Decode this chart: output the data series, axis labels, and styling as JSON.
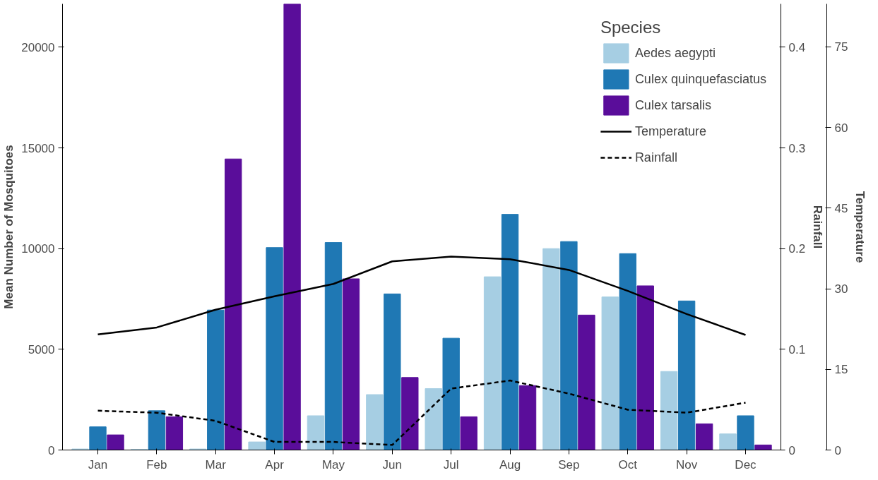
{
  "chart_data": {
    "type": "bar",
    "categories": [
      "Jan",
      "Feb",
      "Mar",
      "Apr",
      "May",
      "Jun",
      "Jul",
      "Aug",
      "Sep",
      "Oct",
      "Nov",
      "Dec"
    ],
    "ylabel": "Mean Number of Mosquitoes",
    "y2label": "Rainfall",
    "y3label": "Temperature",
    "legend_title": "Species",
    "legend": "top right",
    "ylim": [
      0,
      22150
    ],
    "yticks": [
      0,
      5000,
      10000,
      15000,
      20000
    ],
    "y2lim": [
      0,
      0.443
    ],
    "y2ticks": [
      0,
      0.1,
      0.2,
      0.3,
      0.4
    ],
    "y3lim": [
      0,
      83
    ],
    "y3ticks": [
      0,
      15,
      30,
      45,
      60,
      75
    ],
    "series": [
      {
        "name": "Aedes aegypti",
        "color": "#a6cee3",
        "values": [
          50,
          30,
          50,
          400,
          1700,
          2750,
          3050,
          8600,
          10000,
          7600,
          3900,
          800
        ]
      },
      {
        "name": "Culex quinquefasciatus",
        "color": "#1f78b4",
        "values": [
          1150,
          1950,
          6950,
          10050,
          10300,
          7750,
          5550,
          11700,
          10350,
          9750,
          7400,
          1700
        ]
      },
      {
        "name": "Culex tarsalis",
        "color": "#5a0d9a",
        "values": [
          750,
          1650,
          14450,
          22150,
          8500,
          3600,
          1650,
          3200,
          6700,
          8150,
          1300,
          250
        ]
      },
      {
        "name": "Temperature",
        "type": "line",
        "axis": "y3",
        "color": "#000000",
        "line_style": "solid",
        "values": [
          21.5,
          22.8,
          26.1,
          28.6,
          30.9,
          35.1,
          36.0,
          35.5,
          33.5,
          29.6,
          25.3,
          21.4
        ]
      },
      {
        "name": "Rainfall",
        "type": "line",
        "axis": "y2",
        "color": "#000000",
        "line_style": "dashed",
        "values": [
          0.039,
          0.037,
          0.029,
          0.008,
          0.008,
          0.005,
          0.061,
          0.069,
          0.056,
          0.04,
          0.037,
          0.047
        ]
      }
    ]
  }
}
